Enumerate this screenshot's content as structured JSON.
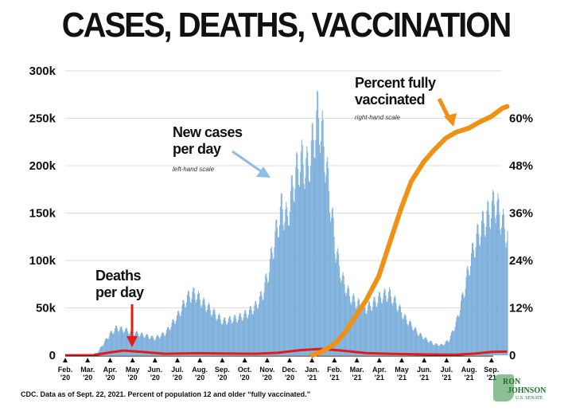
{
  "title": "CASES, DEATHS, VACCINATION",
  "footnote": "CDC. Data as of Sept. 22, 2021. Percent of population 12 and older “fully vaccinated.”",
  "logo": {
    "line1": "RON",
    "line2": "JOHNSON",
    "line3": "U.S. SENATE"
  },
  "colors": {
    "cases": "#7fb1dc",
    "deaths": "#e51b1b",
    "vaccination": "#ee9115",
    "axis": "#111111",
    "grid": "#dcdcdc"
  },
  "chart_data": {
    "type": "area",
    "title": "CASES, DEATHS, VACCINATION",
    "grid": true,
    "x_ticks": [
      {
        "month": "Feb.",
        "year": "'20"
      },
      {
        "month": "Mar.",
        "year": "'20"
      },
      {
        "month": "Apr.",
        "year": "'20"
      },
      {
        "month": "May",
        "year": "'20"
      },
      {
        "month": "Jun.",
        "year": "'20"
      },
      {
        "month": "Jul.",
        "year": "'20"
      },
      {
        "month": "Aug.",
        "year": "'20"
      },
      {
        "month": "Sep.",
        "year": "'20"
      },
      {
        "month": "Oct.",
        "year": "'20"
      },
      {
        "month": "Nov.",
        "year": "'20"
      },
      {
        "month": "Dec.",
        "year": "'20"
      },
      {
        "month": "Jan.",
        "year": "'21"
      },
      {
        "month": "Feb.",
        "year": "'21"
      },
      {
        "month": "Mar.",
        "year": "'21"
      },
      {
        "month": "Apr.",
        "year": "'21"
      },
      {
        "month": "May",
        "year": "'21"
      },
      {
        "month": "Jun.",
        "year": "'21"
      },
      {
        "month": "Jul.",
        "year": "'21"
      },
      {
        "month": "Aug.",
        "year": "'21"
      },
      {
        "month": "Sep.",
        "year": "'21"
      }
    ],
    "y_left": {
      "ylim": [
        0,
        300000
      ],
      "ticks": [
        "0",
        "50k",
        "100k",
        "150k",
        "200k",
        "250k",
        "300k"
      ]
    },
    "y_right": {
      "ylim": [
        0,
        72
      ],
      "ticks": [
        "0",
        "12%",
        "24%",
        "36%",
        "48%",
        "60%"
      ]
    },
    "series": [
      {
        "name": "New cases per day",
        "axis": "left",
        "style": "bars",
        "x": [
          "2020-02-01",
          "2020-03-01",
          "2020-03-15",
          "2020-04-01",
          "2020-04-10",
          "2020-04-20",
          "2020-05-01",
          "2020-05-15",
          "2020-06-01",
          "2020-06-15",
          "2020-07-01",
          "2020-07-15",
          "2020-07-25",
          "2020-08-05",
          "2020-08-15",
          "2020-09-01",
          "2020-09-12",
          "2020-09-25",
          "2020-10-05",
          "2020-10-15",
          "2020-10-25",
          "2020-11-01",
          "2020-11-10",
          "2020-11-20",
          "2020-11-27",
          "2020-12-05",
          "2020-12-15",
          "2020-12-25",
          "2021-01-01",
          "2021-01-08",
          "2021-01-15",
          "2021-01-25",
          "2021-02-01",
          "2021-02-10",
          "2021-02-20",
          "2021-03-01",
          "2021-03-15",
          "2021-03-25",
          "2021-04-05",
          "2021-04-15",
          "2021-04-25",
          "2021-05-05",
          "2021-05-15",
          "2021-05-25",
          "2021-06-05",
          "2021-06-15",
          "2021-06-25",
          "2021-07-05",
          "2021-07-15",
          "2021-07-25",
          "2021-08-01",
          "2021-08-10",
          "2021-08-20",
          "2021-08-30",
          "2021-09-05",
          "2021-09-12",
          "2021-09-18",
          "2021-09-22"
        ],
        "values": [
          0,
          0,
          3000,
          25000,
          32000,
          30000,
          27000,
          24000,
          20000,
          26000,
          45000,
          68000,
          73000,
          62000,
          54000,
          40000,
          42000,
          45000,
          50000,
          57000,
          72000,
          95000,
          135000,
          175000,
          160000,
          200000,
          230000,
          220000,
          250000,
          285000,
          255000,
          180000,
          125000,
          90000,
          70000,
          62000,
          55000,
          62000,
          70000,
          72000,
          60000,
          45000,
          35000,
          25000,
          18000,
          13000,
          12000,
          18000,
          40000,
          75000,
          105000,
          135000,
          155000,
          170000,
          180000,
          165000,
          150000,
          140000
        ]
      },
      {
        "name": "Deaths per day",
        "axis": "left",
        "style": "line",
        "x": [
          "2020-02-01",
          "2020-03-10",
          "2020-04-01",
          "2020-04-20",
          "2020-05-15",
          "2020-06-15",
          "2020-07-30",
          "2020-09-15",
          "2020-10-15",
          "2020-11-15",
          "2020-12-15",
          "2021-01-12",
          "2021-02-10",
          "2021-03-15",
          "2021-04-15",
          "2021-05-15",
          "2021-06-15",
          "2021-07-15",
          "2021-08-10",
          "2021-09-01",
          "2021-09-22"
        ],
        "values": [
          0,
          0,
          1500,
          2500,
          1800,
          800,
          1100,
          900,
          800,
          1300,
          2700,
          3400,
          2500,
          1200,
          800,
          600,
          400,
          300,
          900,
          1800,
          2000
        ]
      },
      {
        "name": "Percent fully vaccinated",
        "axis": "right",
        "style": "line",
        "x": [
          "2021-01-01",
          "2021-01-15",
          "2021-02-01",
          "2021-02-15",
          "2021-03-01",
          "2021-03-15",
          "2021-04-01",
          "2021-04-15",
          "2021-05-01",
          "2021-05-15",
          "2021-06-01",
          "2021-06-15",
          "2021-07-01",
          "2021-07-15",
          "2021-08-01",
          "2021-08-15",
          "2021-09-01",
          "2021-09-15",
          "2021-09-22"
        ],
        "values": [
          0,
          1,
          3,
          6,
          10,
          14,
          20,
          28,
          37,
          44,
          49,
          52,
          55,
          56.5,
          57.5,
          59,
          60.5,
          62.5,
          63
        ]
      }
    ],
    "annotations": [
      {
        "id": "cases",
        "lines": [
          "New cases",
          "per day"
        ],
        "sub": "left-hand scale"
      },
      {
        "id": "deaths",
        "lines": [
          "Deaths",
          "per day"
        ],
        "sub": ""
      },
      {
        "id": "vacc",
        "lines": [
          "Percent fully",
          "vaccinated"
        ],
        "sub": "right-hand scale"
      }
    ]
  }
}
